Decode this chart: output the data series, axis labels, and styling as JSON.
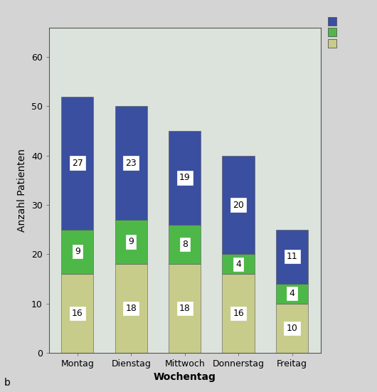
{
  "categories": [
    "Montag",
    "Dienstag",
    "Mittwoch",
    "Donnerstag",
    "Freitag"
  ],
  "bottom_values": [
    16,
    18,
    18,
    16,
    10
  ],
  "middle_values": [
    9,
    9,
    8,
    4,
    4
  ],
  "top_values": [
    27,
    23,
    19,
    20,
    11
  ],
  "bottom_color": "#c8cc8a",
  "middle_color": "#4db848",
  "top_color": "#3a4fa0",
  "ylabel": "Anzahl Patienten",
  "xlabel": "Wochentag",
  "ylim": [
    0,
    66
  ],
  "yticks": [
    0,
    10,
    20,
    30,
    40,
    50,
    60
  ],
  "plot_bg": "#dce3dc",
  "figure_bg": "#d4d4d4",
  "label_fontsize": 10,
  "tick_fontsize": 9,
  "bar_width": 0.6,
  "annotation_fontsize": 9,
  "legend_colors": [
    "#3a4fa0",
    "#4db848",
    "#c8cc8a"
  ],
  "spine_color": "#555555"
}
